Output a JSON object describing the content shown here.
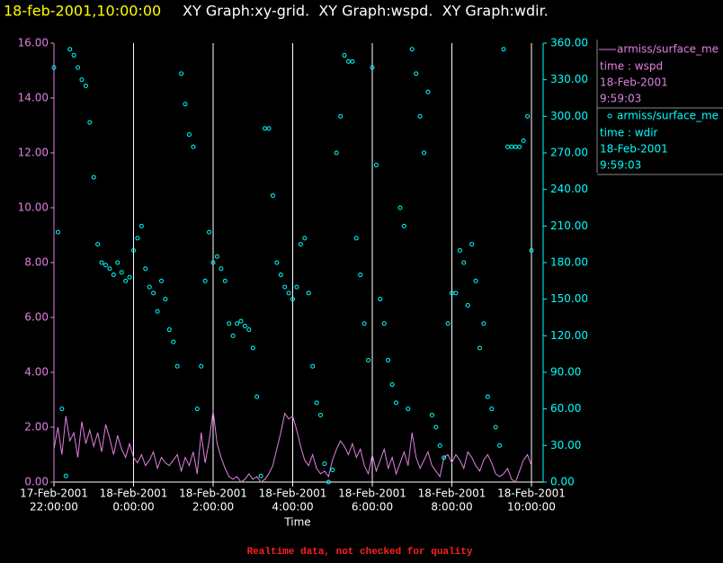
{
  "chart_data": {
    "type": "line+scatter",
    "title_time": "18-feb-2001,10:00:00",
    "title": "XY Graph:xy-grid.  XY Graph:wspd.  XY Graph:wdir.",
    "x_label": "Time",
    "note": "Realtime data, not checked for quality",
    "xlim": [
      "2001-02-17T22:00",
      "2001-02-18T10:00"
    ],
    "xticks": [
      {
        "value": "2001-02-17T22:00",
        "label": [
          "17-Feb-2001",
          "22:00:00"
        ]
      },
      {
        "value": "2001-02-18T00:00",
        "label": [
          "18-Feb-2001",
          "0:00:00"
        ]
      },
      {
        "value": "2001-02-18T02:00",
        "label": [
          "18-Feb-2001",
          "2:00:00"
        ]
      },
      {
        "value": "2001-02-18T04:00",
        "label": [
          "18-Feb-2001",
          "4:00:00"
        ]
      },
      {
        "value": "2001-02-18T06:00",
        "label": [
          "18-Feb-2001",
          "6:00:00"
        ]
      },
      {
        "value": "2001-02-18T08:00",
        "label": [
          "18-Feb-2001",
          "8:00:00"
        ]
      },
      {
        "value": "2001-02-18T10:00",
        "label": [
          "18-Feb-2001",
          "10:00:00"
        ]
      }
    ],
    "ylim": [
      0,
      16
    ],
    "yticks": [
      {
        "value": 0,
        "label": "0.00"
      },
      {
        "value": 2,
        "label": "2.00"
      },
      {
        "value": 4,
        "label": "4.00"
      },
      {
        "value": 6,
        "label": "6.00"
      },
      {
        "value": 8,
        "label": "8.00"
      },
      {
        "value": 10,
        "label": "10.00"
      },
      {
        "value": 12,
        "label": "12.00"
      },
      {
        "value": 14,
        "label": "14.00"
      },
      {
        "value": 16,
        "label": "16.00"
      }
    ],
    "y2lim": [
      0,
      360
    ],
    "y2ticks": [
      {
        "value": 0,
        "label": "0.00"
      },
      {
        "value": 30,
        "label": "30.00"
      },
      {
        "value": 60,
        "label": "60.00"
      },
      {
        "value": 90,
        "label": "90.00"
      },
      {
        "value": 120,
        "label": "120.00"
      },
      {
        "value": 150,
        "label": "150.00"
      },
      {
        "value": 180,
        "label": "180.00"
      },
      {
        "value": 210,
        "label": "210.00"
      },
      {
        "value": 240,
        "label": "240.00"
      },
      {
        "value": 270,
        "label": "270.00"
      },
      {
        "value": 300,
        "label": "300.00"
      },
      {
        "value": 330,
        "label": "330.00"
      },
      {
        "value": 360,
        "label": "360.00"
      }
    ],
    "grid": true,
    "x": [
      "2001-02-17T22:00",
      "2001-02-17T22:06",
      "2001-02-17T22:12",
      "2001-02-17T22:18",
      "2001-02-17T22:24",
      "2001-02-17T22:30",
      "2001-02-17T22:36",
      "2001-02-17T22:42",
      "2001-02-17T22:48",
      "2001-02-17T22:54",
      "2001-02-17T23:00",
      "2001-02-17T23:06",
      "2001-02-17T23:12",
      "2001-02-17T23:18",
      "2001-02-17T23:24",
      "2001-02-17T23:30",
      "2001-02-17T23:36",
      "2001-02-17T23:42",
      "2001-02-17T23:48",
      "2001-02-17T23:54",
      "2001-02-18T00:00",
      "2001-02-18T00:06",
      "2001-02-18T00:12",
      "2001-02-18T00:18",
      "2001-02-18T00:24",
      "2001-02-18T00:30",
      "2001-02-18T00:36",
      "2001-02-18T00:42",
      "2001-02-18T00:48",
      "2001-02-18T00:54",
      "2001-02-18T01:00",
      "2001-02-18T01:06",
      "2001-02-18T01:12",
      "2001-02-18T01:18",
      "2001-02-18T01:24",
      "2001-02-18T01:30",
      "2001-02-18T01:36",
      "2001-02-18T01:42",
      "2001-02-18T01:48",
      "2001-02-18T01:54",
      "2001-02-18T02:00",
      "2001-02-18T02:06",
      "2001-02-18T02:12",
      "2001-02-18T02:18",
      "2001-02-18T02:24",
      "2001-02-18T02:30",
      "2001-02-18T02:36",
      "2001-02-18T02:42",
      "2001-02-18T02:48",
      "2001-02-18T02:54",
      "2001-02-18T03:00",
      "2001-02-18T03:06",
      "2001-02-18T03:12",
      "2001-02-18T03:18",
      "2001-02-18T03:24",
      "2001-02-18T03:30",
      "2001-02-18T03:36",
      "2001-02-18T03:42",
      "2001-02-18T03:48",
      "2001-02-18T03:54",
      "2001-02-18T04:00",
      "2001-02-18T04:06",
      "2001-02-18T04:12",
      "2001-02-18T04:18",
      "2001-02-18T04:24",
      "2001-02-18T04:30",
      "2001-02-18T04:36",
      "2001-02-18T04:42",
      "2001-02-18T04:48",
      "2001-02-18T04:54",
      "2001-02-18T05:00",
      "2001-02-18T05:06",
      "2001-02-18T05:12",
      "2001-02-18T05:18",
      "2001-02-18T05:24",
      "2001-02-18T05:30",
      "2001-02-18T05:36",
      "2001-02-18T05:42",
      "2001-02-18T05:48",
      "2001-02-18T05:54",
      "2001-02-18T06:00",
      "2001-02-18T06:06",
      "2001-02-18T06:12",
      "2001-02-18T06:18",
      "2001-02-18T06:24",
      "2001-02-18T06:30",
      "2001-02-18T06:36",
      "2001-02-18T06:42",
      "2001-02-18T06:48",
      "2001-02-18T06:54",
      "2001-02-18T07:00",
      "2001-02-18T07:06",
      "2001-02-18T07:12",
      "2001-02-18T07:18",
      "2001-02-18T07:24",
      "2001-02-18T07:30",
      "2001-02-18T07:36",
      "2001-02-18T07:42",
      "2001-02-18T07:48",
      "2001-02-18T07:54",
      "2001-02-18T08:00",
      "2001-02-18T08:06",
      "2001-02-18T08:12",
      "2001-02-18T08:18",
      "2001-02-18T08:24",
      "2001-02-18T08:30",
      "2001-02-18T08:36",
      "2001-02-18T08:42",
      "2001-02-18T08:48",
      "2001-02-18T08:54",
      "2001-02-18T09:00",
      "2001-02-18T09:06",
      "2001-02-18T09:12",
      "2001-02-18T09:18",
      "2001-02-18T09:24",
      "2001-02-18T09:30",
      "2001-02-18T09:36",
      "2001-02-18T09:42",
      "2001-02-18T09:48",
      "2001-02-18T09:54",
      "2001-02-18T10:00"
    ],
    "series": [
      {
        "name": "armiss/surface_me",
        "type": "line",
        "legend_lines": [
          "time : wspd",
          "18-Feb-2001",
          "9:59:03"
        ],
        "color": "#e080e0",
        "axis": "y",
        "values": [
          1.2,
          2.0,
          1.0,
          2.4,
          1.5,
          1.8,
          0.9,
          2.2,
          1.4,
          1.9,
          1.3,
          1.8,
          1.1,
          2.1,
          1.6,
          1.0,
          1.7,
          1.2,
          0.9,
          1.4,
          0.9,
          0.7,
          1.0,
          0.6,
          0.8,
          1.1,
          0.5,
          0.9,
          0.7,
          0.6,
          0.8,
          1.0,
          0.4,
          0.9,
          0.6,
          1.1,
          0.3,
          1.8,
          0.7,
          1.5,
          2.6,
          1.4,
          0.9,
          0.5,
          0.2,
          0.1,
          0.2,
          0.0,
          0.1,
          0.3,
          0.1,
          0.2,
          0.0,
          0.1,
          0.3,
          0.6,
          1.2,
          1.8,
          2.5,
          2.3,
          2.4,
          1.9,
          1.3,
          0.8,
          0.6,
          1.0,
          0.5,
          0.3,
          0.4,
          0.2,
          0.8,
          1.2,
          1.5,
          1.3,
          1.0,
          1.4,
          0.9,
          1.2,
          0.6,
          0.3,
          1.0,
          0.4,
          0.8,
          1.2,
          0.5,
          0.9,
          0.3,
          0.7,
          1.1,
          0.6,
          1.8,
          0.9,
          0.5,
          0.8,
          1.1,
          0.6,
          0.4,
          0.2,
          0.9,
          1.0,
          0.7,
          1.0,
          0.8,
          0.5,
          1.1,
          0.9,
          0.6,
          0.4,
          0.8,
          1.0,
          0.7,
          0.3,
          0.2,
          0.3,
          0.5,
          0.1,
          0.0,
          0.4,
          0.8,
          1.0,
          0.6
        ]
      },
      {
        "name": "armiss/surface_me",
        "type": "scatter",
        "legend_lines": [
          "time : wdir",
          "18-Feb-2001",
          "9:59:03"
        ],
        "color": "#00ffff",
        "axis": "y2",
        "values": [
          340,
          205,
          60,
          5,
          355,
          350,
          340,
          330,
          325,
          295,
          250,
          195,
          180,
          178,
          175,
          170,
          180,
          172,
          165,
          168,
          190,
          200,
          210,
          175,
          160,
          155,
          140,
          165,
          150,
          125,
          115,
          95,
          335,
          310,
          285,
          275,
          60,
          95,
          165,
          205,
          180,
          185,
          175,
          165,
          130,
          120,
          130,
          132,
          128,
          125,
          110,
          70,
          5,
          290,
          290,
          235,
          180,
          170,
          160,
          155,
          150,
          160,
          195,
          200,
          155,
          95,
          65,
          55,
          15,
          0,
          10,
          270,
          300,
          350,
          345,
          345,
          200,
          170,
          130,
          100,
          340,
          260,
          150,
          130,
          100,
          80,
          65,
          225,
          210,
          60,
          355,
          335,
          300,
          270,
          320,
          55,
          45,
          30,
          20,
          130,
          155,
          155,
          190,
          180,
          145,
          195,
          165,
          110,
          130,
          70,
          60,
          45,
          30,
          355,
          275,
          275,
          275,
          275,
          280,
          300,
          190
        ]
      }
    ]
  }
}
